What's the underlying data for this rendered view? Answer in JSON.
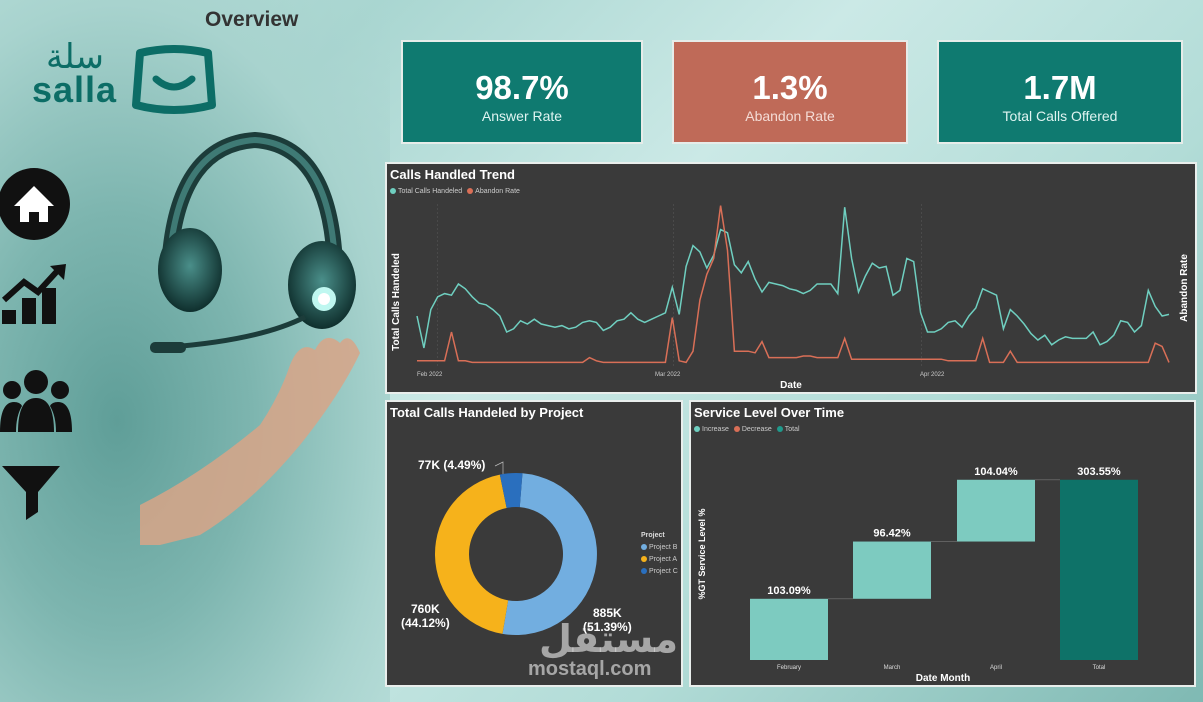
{
  "page": {
    "title": "Overview"
  },
  "logo": {
    "arabic": "سلة",
    "english": "salla"
  },
  "nav": [
    {
      "name": "home-icon"
    },
    {
      "name": "chart-trend-icon"
    },
    {
      "name": "users-group-icon"
    },
    {
      "name": "filter-icon"
    }
  ],
  "kpis": [
    {
      "value": "98.7%",
      "label": "Answer Rate",
      "color": "#0f7a70"
    },
    {
      "value": "1.3%",
      "label": "Abandon Rate",
      "color": "#bf6a58"
    },
    {
      "value": "1.7M",
      "label": "Total Calls Offered",
      "color": "#0f7a70"
    }
  ],
  "trend": {
    "title": "Calls Handled Trend",
    "legend": [
      {
        "label": "Total Calls Handeled",
        "color": "#6fcfc0"
      },
      {
        "label": "Abandon Rate",
        "color": "#d96f57"
      }
    ],
    "ylabel": "Total Calls Handeled",
    "y2label": "Abandon Rate",
    "xlabel": "Date",
    "xticks": [
      "Feb 2022",
      "Mar 2022",
      "Apr 2022"
    ]
  },
  "pie": {
    "title": "Total Calls Handeled by Project",
    "legend_title": "Project",
    "labels": {
      "c": "77K (4.49%)",
      "a_line1": "760K",
      "a_line2": "(44.12%)",
      "b_line1": "885K",
      "b_line2": "(51.39%)"
    }
  },
  "waterfall": {
    "title": "Service Level Over Time",
    "legend": [
      {
        "label": "Increase",
        "color": "#6fcfc0"
      },
      {
        "label": "Decrease",
        "color": "#d96f57"
      },
      {
        "label": "Total",
        "color": "#1f9a8c"
      }
    ],
    "ylabel": "%GT Service Level %",
    "xlabel": "Date Month"
  },
  "watermark": {
    "arabic": "مستقل",
    "latin": "mostaql.com"
  },
  "chart_data": [
    {
      "type": "line",
      "title": "Calls Handled Trend",
      "x_range": [
        "2022-02-01",
        "2022-04-30"
      ],
      "xticks": [
        "Feb 2022",
        "Mar 2022",
        "Apr 2022"
      ],
      "series": [
        {
          "name": "Total Calls Handeled",
          "values": [
            0.3,
            0.1,
            0.34,
            0.42,
            0.44,
            0.43,
            0.5,
            0.47,
            0.42,
            0.38,
            0.37,
            0.34,
            0.3,
            0.2,
            0.22,
            0.27,
            0.25,
            0.28,
            0.25,
            0.24,
            0.23,
            0.24,
            0.22,
            0.23,
            0.26,
            0.27,
            0.26,
            0.21,
            0.23,
            0.27,
            0.28,
            0.32,
            0.28,
            0.26,
            0.28,
            0.3,
            0.32,
            0.48,
            0.31,
            0.61,
            0.74,
            0.7,
            0.6,
            0.68,
            0.84,
            0.82,
            0.62,
            0.57,
            0.64,
            0.53,
            0.45,
            0.51,
            0.5,
            0.49,
            0.47,
            0.46,
            0.44,
            0.46,
            0.5,
            0.5,
            0.5,
            0.44,
            0.98,
            0.66,
            0.45,
            0.55,
            0.63,
            0.6,
            0.61,
            0.43,
            0.46,
            0.66,
            0.64,
            0.32,
            0.2,
            0.2,
            0.22,
            0.26,
            0.27,
            0.23,
            0.3,
            0.35,
            0.47,
            0.45,
            0.43,
            0.22,
            0.34,
            0.3,
            0.25,
            0.19,
            0.15,
            0.18,
            0.12,
            0.15,
            0.17,
            0.16,
            0.16,
            0.16,
            0.2,
            0.12,
            0.14,
            0.18,
            0.27,
            0.26,
            0.2,
            0.24,
            0.46,
            0.36,
            0.3,
            0.31
          ]
        },
        {
          "name": "Abandon Rate",
          "values": [
            0.02,
            0.02,
            0.02,
            0.02,
            0.02,
            0.2,
            0.02,
            0.02,
            0.01,
            0.01,
            0.01,
            0.01,
            0.01,
            0.01,
            0.01,
            0.01,
            0.01,
            0.01,
            0.01,
            0.01,
            0.01,
            0.01,
            0.01,
            0.01,
            0.01,
            0.04,
            0.02,
            0.01,
            0.01,
            0.01,
            0.01,
            0.01,
            0.01,
            0.01,
            0.01,
            0.01,
            0.01,
            0.29,
            0.02,
            0.01,
            0.08,
            0.4,
            0.56,
            0.66,
            0.99,
            0.71,
            0.08,
            0.08,
            0.08,
            0.07,
            0.14,
            0.04,
            0.04,
            0.04,
            0.04,
            0.04,
            0.05,
            0.05,
            0.04,
            0.04,
            0.04,
            0.04,
            0.16,
            0.03,
            0.03,
            0.03,
            0.03,
            0.03,
            0.03,
            0.03,
            0.03,
            0.03,
            0.03,
            0.03,
            0.03,
            0.03,
            0.03,
            0.02,
            0.02,
            0.02,
            0.02,
            0.02,
            0.16,
            0.01,
            0.01,
            0.01,
            0.08,
            0.01,
            0.01,
            0.01,
            0.01,
            0.01,
            0.01,
            0.01,
            0.01,
            0.01,
            0.01,
            0.01,
            0.01,
            0.01,
            0.01,
            0.01,
            0.01,
            0.01,
            0.01,
            0.01,
            0.01,
            0.13,
            0.11,
            0.01
          ]
        }
      ]
    },
    {
      "type": "pie",
      "title": "Total Calls Handeled by Project",
      "donut": true,
      "slices": [
        {
          "name": "Project B",
          "value": 885,
          "percent": 51.39,
          "label": "885K",
          "color": "#72aee0"
        },
        {
          "name": "Project A",
          "value": 760,
          "percent": 44.12,
          "label": "760K",
          "color": "#f6b21b"
        },
        {
          "name": "Project C",
          "value": 77,
          "percent": 4.49,
          "label": "77K",
          "color": "#2a6fbe"
        }
      ]
    },
    {
      "type": "bar",
      "subtype": "waterfall",
      "title": "Service Level Over Time",
      "categories": [
        "February",
        "March",
        "April",
        "Total"
      ],
      "values": [
        103.09,
        96.42,
        104.04,
        303.55
      ],
      "labels": [
        "103.09%",
        "96.42%",
        "104.04%",
        "303.55%"
      ],
      "kinds": [
        "increase",
        "increase",
        "increase",
        "total"
      ],
      "ylim": [
        0,
        320
      ]
    }
  ]
}
